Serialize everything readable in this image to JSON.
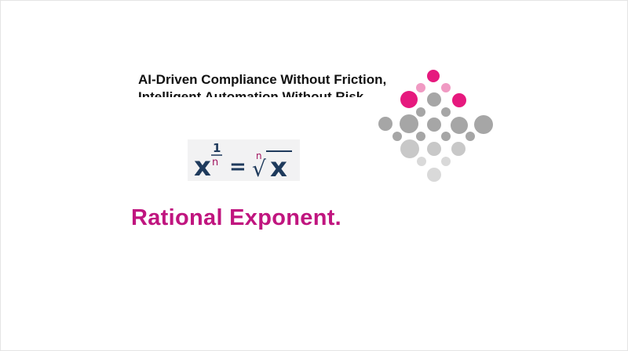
{
  "slide": {
    "tagline_line1": "AI-Driven Compliance Without Friction,",
    "tagline_line2": "Intelligent Automation Without Risk",
    "heading": "Rational Exponent."
  },
  "formula": {
    "base": "x",
    "exponent_numerator": "1",
    "exponent_denominator": "n",
    "equals": "=",
    "root_index": "n",
    "radical": "√",
    "radicand": "x"
  },
  "colors": {
    "accent": "#c0157f",
    "formula_dark": "#1e3a5c",
    "formula_accent": "#a1145f",
    "dot_pink": "#e6197e",
    "dot_gray": "#a6a6a6",
    "dot_light": "#d9d9d9"
  },
  "logo": {
    "icon": "dot-diamond-logo-icon"
  }
}
